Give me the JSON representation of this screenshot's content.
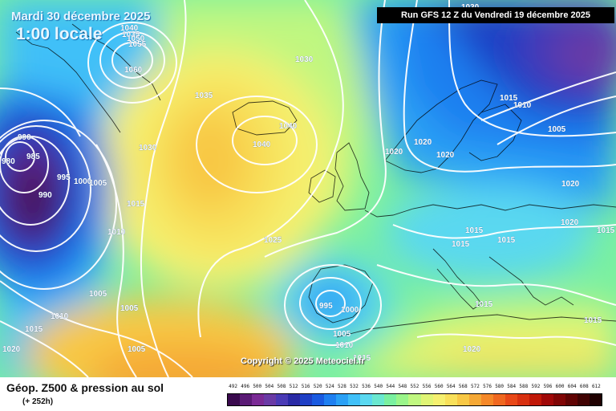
{
  "header": {
    "date": "Mardi 30 décembre 2025",
    "time": "1:00 locale",
    "run": "Run GFS 12 Z du Vendredi 19 décembre 2025"
  },
  "copyright": "Copyright © 2025 Meteociel.fr",
  "legend": {
    "title": "Géop. Z500 & pression au sol",
    "subtitle": "(+ 252h)",
    "levels": [
      "492",
      "496",
      "500",
      "504",
      "508",
      "512",
      "516",
      "520",
      "524",
      "528",
      "532",
      "536",
      "540",
      "544",
      "548",
      "552",
      "556",
      "560",
      "564",
      "568",
      "572",
      "576",
      "580",
      "584",
      "588",
      "592",
      "596",
      "600",
      "604",
      "608",
      "612"
    ],
    "colors": [
      "#3a0a4e",
      "#5a1a75",
      "#7a2a95",
      "#6a3aa5",
      "#4a3ab5",
      "#2a2aa5",
      "#1f3fc5",
      "#1a5ae0",
      "#1f7ff0",
      "#2aa0f5",
      "#40c0f8",
      "#5ad8f0",
      "#6ae8d0",
      "#7af0a0",
      "#9af58a",
      "#c0f780",
      "#e0f575",
      "#f5f070",
      "#f8e05a",
      "#f8c845",
      "#f5a835",
      "#f58828",
      "#f06820",
      "#e84818",
      "#d83010",
      "#c01808",
      "#a00808",
      "#800505",
      "#600303",
      "#400202",
      "#200101"
    ]
  },
  "isobar_labels": [
    {
      "text": "1040"
    },
    {
      "text": "1035"
    },
    {
      "text": "1050"
    },
    {
      "text": "1055"
    },
    {
      "text": "1060"
    },
    {
      "text": "1030"
    },
    {
      "text": "1035"
    },
    {
      "text": "1040"
    },
    {
      "text": "1040"
    },
    {
      "text": "1030"
    },
    {
      "text": "990"
    },
    {
      "text": "985"
    },
    {
      "text": "980"
    },
    {
      "text": "995"
    },
    {
      "text": "1000"
    },
    {
      "text": "1005"
    },
    {
      "text": "990"
    },
    {
      "text": "1015"
    },
    {
      "text": "1010"
    },
    {
      "text": "1025"
    },
    {
      "text": "1005"
    },
    {
      "text": "1005"
    },
    {
      "text": "1010"
    },
    {
      "text": "1015"
    },
    {
      "text": "1020"
    },
    {
      "text": "1005"
    },
    {
      "text": "995"
    },
    {
      "text": "1000"
    },
    {
      "text": "1005"
    },
    {
      "text": "1010"
    },
    {
      "text": "1015"
    },
    {
      "text": "1020"
    },
    {
      "text": "1020"
    },
    {
      "text": "1020"
    },
    {
      "text": "1015"
    },
    {
      "text": "1015"
    },
    {
      "text": "1015"
    },
    {
      "text": "1015"
    },
    {
      "text": "1010"
    },
    {
      "text": "1005"
    },
    {
      "text": "1020"
    },
    {
      "text": "1015"
    },
    {
      "text": "1015"
    },
    {
      "text": "1020"
    },
    {
      "text": "1015"
    },
    {
      "text": "1030"
    },
    {
      "text": "1020"
    }
  ]
}
